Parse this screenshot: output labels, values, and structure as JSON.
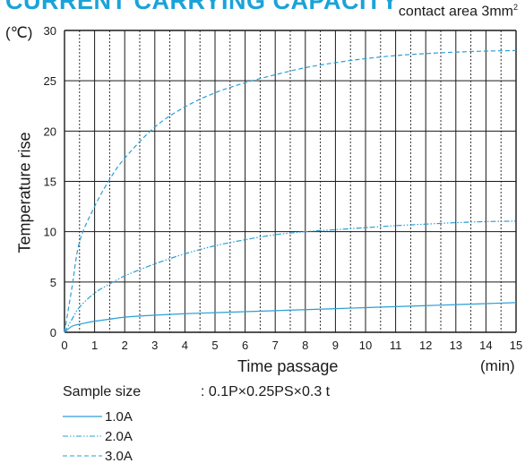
{
  "page": {
    "title": "CURRENT CARRYING CAPACITY",
    "subtitle_text": "contact area 3mm",
    "subtitle_sup": "2",
    "unit_label": "(℃)",
    "x_unit": "(min)",
    "sample_label": "Sample size",
    "sample_spec": ": 0.1P×0.25PS×0.3 t"
  },
  "colors": {
    "line": "#2a9fd6",
    "grid": "#1a1a1a",
    "title": "#1aa3d9"
  },
  "chart_data": {
    "type": "line",
    "xlabel": "Time passage",
    "ylabel": "Temperature rise",
    "xlim": [
      0,
      15
    ],
    "ylim": [
      0,
      30
    ],
    "x_ticks": [
      0,
      1,
      2,
      3,
      4,
      5,
      6,
      7,
      8,
      9,
      10,
      11,
      12,
      13,
      14,
      15
    ],
    "y_ticks": [
      0,
      5,
      10,
      15,
      20,
      25,
      30
    ],
    "grid": true,
    "legend_position": "bottom-left",
    "series": [
      {
        "name": "1.0A",
        "style": "solid",
        "x": [
          0,
          0.25,
          0.5,
          1,
          1.5,
          2,
          3,
          4,
          5,
          6,
          7,
          8,
          9,
          10,
          11,
          12,
          13,
          14,
          15
        ],
        "y": [
          0,
          0.6,
          0.8,
          1.1,
          1.3,
          1.5,
          1.7,
          1.85,
          1.95,
          2.05,
          2.15,
          2.25,
          2.35,
          2.45,
          2.55,
          2.65,
          2.75,
          2.85,
          2.95
        ]
      },
      {
        "name": "2.0A",
        "style": "dash-dot-dot",
        "x": [
          0,
          0.25,
          0.5,
          1,
          1.5,
          2,
          3,
          4,
          5,
          6,
          7,
          8,
          9,
          10,
          11,
          12,
          13,
          14,
          15
        ],
        "y": [
          0,
          1.3,
          2.5,
          3.9,
          4.8,
          5.6,
          6.8,
          7.8,
          8.6,
          9.2,
          9.7,
          10.0,
          10.2,
          10.4,
          10.6,
          10.75,
          10.9,
          11.0,
          11.05
        ]
      },
      {
        "name": "3.0A",
        "style": "dashed",
        "x": [
          0,
          0.25,
          0.5,
          1,
          1.5,
          2,
          3,
          4,
          5,
          6,
          7,
          8,
          9,
          10,
          11,
          12,
          13,
          14,
          15
        ],
        "y": [
          0,
          4.5,
          9.0,
          12.5,
          15.2,
          17.3,
          20.4,
          22.4,
          23.8,
          24.8,
          25.6,
          26.3,
          26.8,
          27.2,
          27.5,
          27.7,
          27.85,
          27.95,
          28.0
        ]
      }
    ]
  }
}
